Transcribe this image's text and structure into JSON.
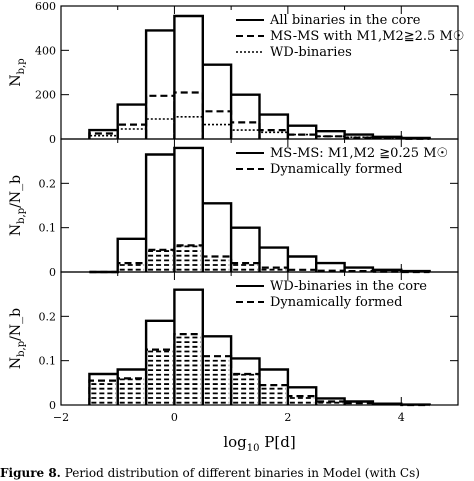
{
  "figure": {
    "caption_label": "Figure 8.",
    "caption_text": "Period distribution of different binaries in Model (with Cs)"
  },
  "chart_data": [
    {
      "type": "histogram",
      "ylabel": "N_{b,p}",
      "xlabel": "",
      "xlim": [
        -2,
        5
      ],
      "ylim": [
        0,
        600
      ],
      "yticks": [
        0,
        200,
        400,
        600
      ],
      "legend_position": "top-right",
      "bins": [
        -1.5,
        -1.0,
        -0.5,
        0.0,
        0.5,
        1.0,
        1.5,
        2.0,
        2.5,
        3.0,
        3.5,
        4.0,
        4.5
      ],
      "series": [
        {
          "name": "All binaries in the core",
          "style": "solid",
          "values": [
            40,
            155,
            490,
            555,
            335,
            200,
            110,
            60,
            35,
            20,
            10,
            5
          ]
        },
        {
          "name": "MS-MS with M1,M2≧2.5 M☉",
          "style": "dashed",
          "values": [
            25,
            65,
            195,
            210,
            125,
            75,
            40,
            20,
            12,
            6,
            3,
            1
          ]
        },
        {
          "name": "WD-binaries",
          "style": "dotted",
          "values": [
            15,
            45,
            90,
            100,
            65,
            40,
            30,
            20,
            12,
            8,
            4,
            2
          ]
        }
      ]
    },
    {
      "type": "histogram",
      "ylabel": "N_{b,p}/N_b",
      "xlabel": "",
      "xlim": [
        -2,
        5
      ],
      "ylim": [
        0,
        0.3
      ],
      "yticks": [
        0,
        0.1,
        0.2
      ],
      "legend_position": "top-right",
      "bins": [
        -1.5,
        -1.0,
        -0.5,
        0.0,
        0.5,
        1.0,
        1.5,
        2.0,
        2.5,
        3.0,
        3.5,
        4.0,
        4.5
      ],
      "series": [
        {
          "name": "MS-MS: M1,M2 ≧0.25 M☉",
          "style": "solid",
          "values": [
            0,
            0.075,
            0.265,
            0.28,
            0.155,
            0.1,
            0.055,
            0.035,
            0.02,
            0.01,
            0.005,
            0.002
          ]
        },
        {
          "name": "Dynamically formed",
          "style": "dashed-hatch",
          "values": [
            0,
            0.02,
            0.05,
            0.06,
            0.035,
            0.02,
            0.01,
            0.005,
            0.003,
            0.002,
            0.001,
            0
          ]
        }
      ]
    },
    {
      "type": "histogram",
      "ylabel": "N_{b,p}/N_b",
      "xlabel": "log10 P[d]",
      "xlim": [
        -2,
        5
      ],
      "ylim": [
        0,
        0.3
      ],
      "yticks": [
        0,
        0.1,
        0.2
      ],
      "xticks": [
        -2,
        0,
        2,
        4
      ],
      "legend_position": "top-right",
      "bins": [
        -1.5,
        -1.0,
        -0.5,
        0.0,
        0.5,
        1.0,
        1.5,
        2.0,
        2.5,
        3.0,
        3.5,
        4.0,
        4.5
      ],
      "series": [
        {
          "name": "WD-binaries in the core",
          "style": "solid",
          "values": [
            0.07,
            0.08,
            0.19,
            0.26,
            0.155,
            0.105,
            0.08,
            0.04,
            0.015,
            0.008,
            0.003,
            0.001
          ]
        },
        {
          "name": "Dynamically formed",
          "style": "dashed-hatch",
          "values": [
            0.055,
            0.06,
            0.125,
            0.16,
            0.11,
            0.07,
            0.045,
            0.02,
            0.008,
            0.004,
            0.002,
            0
          ]
        }
      ]
    }
  ]
}
